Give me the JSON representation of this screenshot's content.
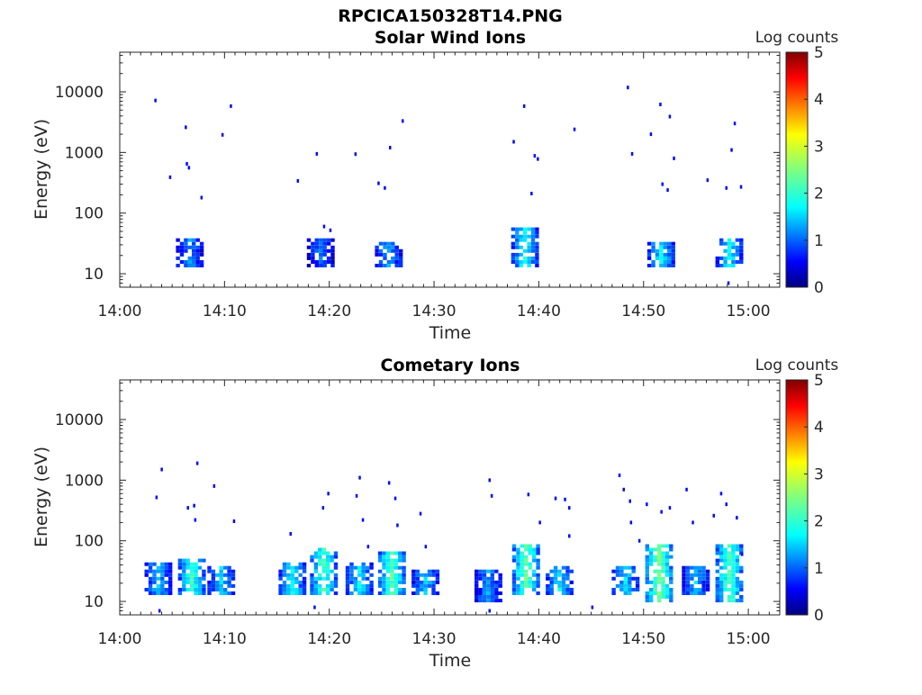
{
  "figure_title": "RPCICA150328T14.PNG",
  "colorbar": {
    "label": "Log counts",
    "ticks": [
      "0",
      "1",
      "2",
      "3",
      "4",
      "5"
    ],
    "range": [
      0,
      5
    ],
    "colormap": "jet"
  },
  "chart_data": [
    {
      "type": "heatmap",
      "title": "Solar Wind Ions",
      "xlabel": "Time",
      "ylabel": "Energy (eV)",
      "x_ticks": [
        "14:00",
        "14:10",
        "14:20",
        "14:30",
        "14:40",
        "14:50",
        "15:00"
      ],
      "y_ticks": [
        "10",
        "100",
        "1000",
        "10000"
      ],
      "xlim_minutes": [
        0,
        63
      ],
      "ylim_eV": [
        6,
        45000
      ],
      "y_scale": "log",
      "colorbar_label": "Log counts",
      "events": [
        {
          "t": 6.5,
          "e_lo": 12,
          "e_hi": 40,
          "level": 1.2
        },
        {
          "t": 19.0,
          "e_lo": 12,
          "e_hi": 40,
          "level": 1.0
        },
        {
          "t": 25.5,
          "e_lo": 12,
          "e_hi": 35,
          "level": 1.3
        },
        {
          "t": 38.5,
          "e_lo": 12,
          "e_hi": 60,
          "level": 1.8
        },
        {
          "t": 51.5,
          "e_lo": 12,
          "e_hi": 35,
          "level": 1.6
        },
        {
          "t": 58.0,
          "e_lo": 12,
          "e_hi": 40,
          "level": 1.7
        }
      ],
      "scatter": [
        {
          "t": 3.3,
          "e": 7200
        },
        {
          "t": 4.7,
          "e": 390
        },
        {
          "t": 6.2,
          "e": 2600
        },
        {
          "t": 6.3,
          "e": 650
        },
        {
          "t": 6.5,
          "e": 560
        },
        {
          "t": 7.7,
          "e": 180
        },
        {
          "t": 9.7,
          "e": 1950
        },
        {
          "t": 10.5,
          "e": 5800
        },
        {
          "t": 16.9,
          "e": 340
        },
        {
          "t": 18.7,
          "e": 950
        },
        {
          "t": 19.4,
          "e": 60
        },
        {
          "t": 20.0,
          "e": 52
        },
        {
          "t": 22.4,
          "e": 940
        },
        {
          "t": 24.6,
          "e": 310
        },
        {
          "t": 25.2,
          "e": 260
        },
        {
          "t": 25.7,
          "e": 1200
        },
        {
          "t": 26.9,
          "e": 3300
        },
        {
          "t": 37.5,
          "e": 1500
        },
        {
          "t": 38.5,
          "e": 5800
        },
        {
          "t": 39.2,
          "e": 210
        },
        {
          "t": 39.5,
          "e": 880
        },
        {
          "t": 39.8,
          "e": 780
        },
        {
          "t": 43.3,
          "e": 2400
        },
        {
          "t": 48.4,
          "e": 11800
        },
        {
          "t": 48.8,
          "e": 950
        },
        {
          "t": 50.6,
          "e": 2000
        },
        {
          "t": 51.5,
          "e": 6200
        },
        {
          "t": 51.7,
          "e": 300
        },
        {
          "t": 52.2,
          "e": 240
        },
        {
          "t": 52.4,
          "e": 3900
        },
        {
          "t": 52.8,
          "e": 800
        },
        {
          "t": 56.0,
          "e": 350
        },
        {
          "t": 57.8,
          "e": 260
        },
        {
          "t": 58.3,
          "e": 1100
        },
        {
          "t": 58.6,
          "e": 3000
        },
        {
          "t": 59.2,
          "e": 270
        },
        {
          "t": 58.0,
          "e": 7
        }
      ]
    },
    {
      "type": "heatmap",
      "title": "Cometary Ions",
      "xlabel": "Time",
      "ylabel": "Energy (eV)",
      "x_ticks": [
        "14:00",
        "14:10",
        "14:20",
        "14:30",
        "14:40",
        "14:50",
        "15:00"
      ],
      "y_ticks": [
        "10",
        "100",
        "1000",
        "10000"
      ],
      "xlim_minutes": [
        0,
        63
      ],
      "ylim_eV": [
        6,
        45000
      ],
      "y_scale": "log",
      "colorbar_label": "Log counts",
      "events": [
        {
          "t": 3.5,
          "e_lo": 12,
          "e_hi": 45,
          "level": 1.4
        },
        {
          "t": 6.7,
          "e_lo": 12,
          "e_hi": 50,
          "level": 2.0
        },
        {
          "t": 9.5,
          "e_lo": 12,
          "e_hi": 40,
          "level": 1.5
        },
        {
          "t": 16.3,
          "e_lo": 12,
          "e_hi": 45,
          "level": 1.7
        },
        {
          "t": 19.3,
          "e_lo": 12,
          "e_hi": 80,
          "level": 2.1
        },
        {
          "t": 22.7,
          "e_lo": 12,
          "e_hi": 45,
          "level": 1.6
        },
        {
          "t": 25.8,
          "e_lo": 12,
          "e_hi": 70,
          "level": 2.2
        },
        {
          "t": 29.0,
          "e_lo": 12,
          "e_hi": 35,
          "level": 1.4
        },
        {
          "t": 35.0,
          "e_lo": 10,
          "e_hi": 35,
          "level": 1.2
        },
        {
          "t": 38.6,
          "e_lo": 12,
          "e_hi": 90,
          "level": 2.3
        },
        {
          "t": 41.8,
          "e_lo": 12,
          "e_hi": 40,
          "level": 1.6
        },
        {
          "t": 48.1,
          "e_lo": 12,
          "e_hi": 40,
          "level": 1.5
        },
        {
          "t": 51.3,
          "e_lo": 10,
          "e_hi": 90,
          "level": 2.5
        },
        {
          "t": 54.8,
          "e_lo": 12,
          "e_hi": 40,
          "level": 1.4
        },
        {
          "t": 58.0,
          "e_lo": 10,
          "e_hi": 90,
          "level": 2.2
        }
      ],
      "scatter": [
        {
          "t": 3.4,
          "e": 520
        },
        {
          "t": 3.9,
          "e": 1500
        },
        {
          "t": 6.4,
          "e": 350
        },
        {
          "t": 7.0,
          "e": 380
        },
        {
          "t": 7.3,
          "e": 1900
        },
        {
          "t": 7.1,
          "e": 220
        },
        {
          "t": 8.9,
          "e": 800
        },
        {
          "t": 10.8,
          "e": 210
        },
        {
          "t": 16.2,
          "e": 130
        },
        {
          "t": 19.3,
          "e": 350
        },
        {
          "t": 19.8,
          "e": 600
        },
        {
          "t": 22.8,
          "e": 1100
        },
        {
          "t": 22.5,
          "e": 550
        },
        {
          "t": 23.1,
          "e": 220
        },
        {
          "t": 23.6,
          "e": 80
        },
        {
          "t": 25.6,
          "e": 900
        },
        {
          "t": 26.2,
          "e": 500
        },
        {
          "t": 26.4,
          "e": 180
        },
        {
          "t": 28.6,
          "e": 280
        },
        {
          "t": 29.1,
          "e": 80
        },
        {
          "t": 35.2,
          "e": 1000
        },
        {
          "t": 35.4,
          "e": 550
        },
        {
          "t": 38.9,
          "e": 580
        },
        {
          "t": 40.0,
          "e": 200
        },
        {
          "t": 41.5,
          "e": 500
        },
        {
          "t": 42.4,
          "e": 480
        },
        {
          "t": 42.8,
          "e": 350
        },
        {
          "t": 42.8,
          "e": 120
        },
        {
          "t": 47.6,
          "e": 1200
        },
        {
          "t": 48.0,
          "e": 700
        },
        {
          "t": 48.6,
          "e": 450
        },
        {
          "t": 48.7,
          "e": 200
        },
        {
          "t": 49.5,
          "e": 100
        },
        {
          "t": 50.2,
          "e": 400
        },
        {
          "t": 51.6,
          "e": 300
        },
        {
          "t": 52.4,
          "e": 350
        },
        {
          "t": 54.0,
          "e": 700
        },
        {
          "t": 54.6,
          "e": 200
        },
        {
          "t": 56.6,
          "e": 260
        },
        {
          "t": 57.3,
          "e": 600
        },
        {
          "t": 57.8,
          "e": 400
        },
        {
          "t": 58.8,
          "e": 240
        },
        {
          "t": 59.3,
          "e": 60
        },
        {
          "t": 3.7,
          "e": 7
        },
        {
          "t": 18.5,
          "e": 8
        },
        {
          "t": 35.2,
          "e": 7
        },
        {
          "t": 45.0,
          "e": 8
        }
      ]
    }
  ]
}
